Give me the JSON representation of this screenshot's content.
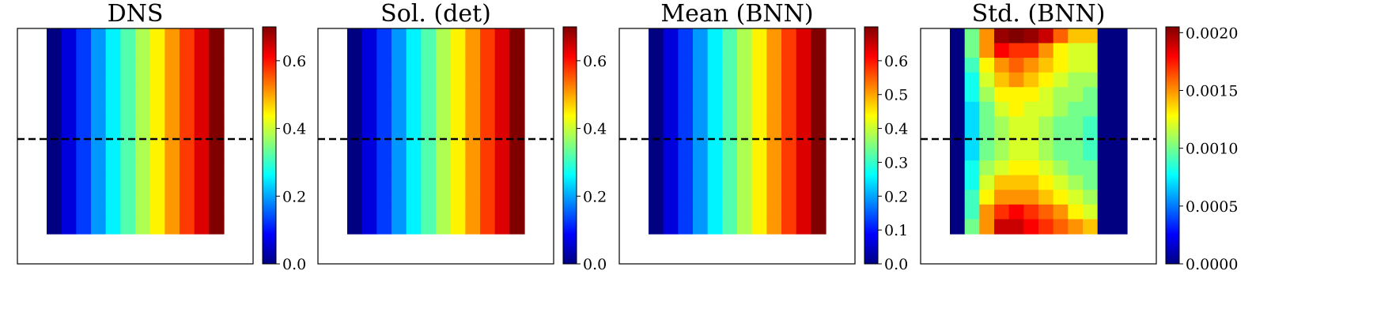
{
  "chart_data": [
    {
      "type": "heatmap",
      "title": "DNS",
      "columns": 12,
      "rows": 14,
      "cell_values": [
        0.0,
        0.064,
        0.127,
        0.191,
        0.255,
        0.318,
        0.382,
        0.445,
        0.509,
        0.573,
        0.636,
        0.7
      ],
      "colorbar": {
        "min": 0.0,
        "max": 0.7,
        "ticks": [
          "0.0",
          "0.2",
          "0.4",
          "0.6"
        ],
        "tick_values": [
          0.0,
          0.2,
          0.4,
          0.6
        ]
      },
      "dashed_line": true,
      "colormap": "jet"
    },
    {
      "type": "heatmap",
      "title": "Sol. (det)",
      "columns": 12,
      "rows": 14,
      "cell_values": [
        0.0,
        0.064,
        0.127,
        0.191,
        0.255,
        0.318,
        0.382,
        0.445,
        0.509,
        0.573,
        0.636,
        0.7
      ],
      "colorbar": {
        "min": 0.0,
        "max": 0.7,
        "ticks": [
          "0.0",
          "0.2",
          "0.4",
          "0.6"
        ],
        "tick_values": [
          0.0,
          0.2,
          0.4,
          0.6
        ]
      },
      "dashed_line": true,
      "colormap": "jet"
    },
    {
      "type": "heatmap",
      "title": "Mean (BNN)",
      "columns": 12,
      "rows": 14,
      "cell_values": [
        0.0,
        0.064,
        0.127,
        0.191,
        0.255,
        0.318,
        0.382,
        0.445,
        0.509,
        0.573,
        0.636,
        0.7
      ],
      "colorbar": {
        "min": 0.0,
        "max": 0.7,
        "ticks": [
          "0.0",
          "0.1",
          "0.2",
          "0.3",
          "0.4",
          "0.5",
          "0.6"
        ],
        "tick_values": [
          0.0,
          0.1,
          0.2,
          0.3,
          0.4,
          0.5,
          0.6
        ]
      },
      "dashed_line": true,
      "colormap": "jet"
    },
    {
      "type": "heatmap",
      "title": "Std. (BNN)",
      "columns": 12,
      "rows": 14,
      "grid_values": [
        [
          0.0,
          0.001,
          0.0015,
          0.002,
          0.0021,
          0.002,
          0.0019,
          0.0016,
          0.0014,
          0.0014,
          0.0,
          0.0
        ],
        [
          0.0,
          0.001,
          0.0015,
          0.0018,
          0.0017,
          0.0017,
          0.0015,
          0.0013,
          0.0012,
          0.0012,
          0.0,
          0.0
        ],
        [
          0.0,
          0.0009,
          0.0013,
          0.0015,
          0.0016,
          0.0015,
          0.0014,
          0.0013,
          0.0012,
          0.0012,
          0.0,
          0.0
        ],
        [
          0.0,
          0.0008,
          0.0012,
          0.0014,
          0.0015,
          0.0014,
          0.0013,
          0.0012,
          0.0011,
          0.0011,
          0.0,
          0.0
        ],
        [
          0.0,
          0.0008,
          0.0011,
          0.0013,
          0.0013,
          0.0013,
          0.0012,
          0.0011,
          0.0011,
          0.001,
          0.0,
          0.0
        ],
        [
          0.0,
          0.0007,
          0.001,
          0.0012,
          0.0013,
          0.0012,
          0.0012,
          0.0011,
          0.001,
          0.001,
          0.0,
          0.0
        ],
        [
          0.0,
          0.0007,
          0.001,
          0.0011,
          0.0012,
          0.0012,
          0.0011,
          0.001,
          0.001,
          0.0009,
          0.0,
          0.0
        ],
        [
          0.0,
          0.0007,
          0.001,
          0.0011,
          0.0012,
          0.0012,
          0.0011,
          0.001,
          0.001,
          0.0009,
          0.0,
          0.0
        ],
        [
          0.0,
          0.0007,
          0.001,
          0.0011,
          0.0012,
          0.0012,
          0.0011,
          0.001,
          0.001,
          0.0009,
          0.0,
          0.0
        ],
        [
          0.0,
          0.0008,
          0.0011,
          0.0012,
          0.0013,
          0.0013,
          0.0012,
          0.0011,
          0.001,
          0.001,
          0.0,
          0.0
        ],
        [
          0.0,
          0.0008,
          0.0012,
          0.0014,
          0.0014,
          0.0014,
          0.0013,
          0.0012,
          0.0011,
          0.001,
          0.0,
          0.0
        ],
        [
          0.0,
          0.0009,
          0.0013,
          0.0015,
          0.0015,
          0.0015,
          0.0014,
          0.0013,
          0.0012,
          0.0011,
          0.0,
          0.0
        ],
        [
          0.0,
          0.0009,
          0.0015,
          0.0017,
          0.0018,
          0.0017,
          0.0016,
          0.0015,
          0.0013,
          0.0012,
          0.0,
          0.0
        ],
        [
          0.0,
          0.001,
          0.0015,
          0.0019,
          0.0019,
          0.0018,
          0.0017,
          0.0016,
          0.0015,
          0.0014,
          0.0,
          0.0
        ]
      ],
      "colorbar": {
        "min": 0.0,
        "max": 0.00205,
        "ticks": [
          "0.0000",
          "0.0005",
          "0.0010",
          "0.0015",
          "0.0020"
        ],
        "tick_values": [
          0.0,
          0.0005,
          0.001,
          0.0015,
          0.002
        ]
      },
      "dashed_line": true,
      "colormap": "jet"
    }
  ]
}
